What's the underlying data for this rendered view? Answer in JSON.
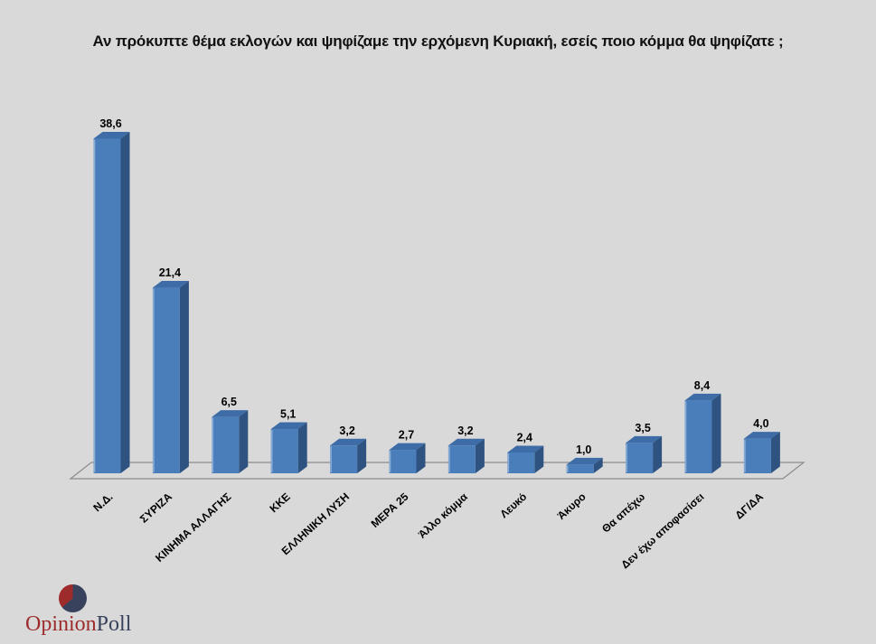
{
  "title": "Αν πρόκυπτε θέμα εκλογών και ψηφίζαμε την ερχόμενη Κυριακή, εσείς ποιο κόμμα θα ψηφίζατε ;",
  "background_color": "#d9d9d9",
  "chart_data": {
    "type": "bar",
    "style": "3d-column",
    "title": "Αν πρόκυπτε θέμα εκλογών και ψηφίζαμε την ερχόμενη Κυριακή, εσείς ποιο κόμμα θα ψηφίζατε ;",
    "categories": [
      "Ν.Δ.",
      "ΣΥΡΙΖΑ",
      "ΚΙΝΗΜΑ ΑΛΛΑΓΗΣ",
      "ΚΚΕ",
      "ΕΛΛΗΝΙΚΗ ΛΥΣΗ",
      "ΜΕΡΑ 25",
      "Άλλο κόμμα",
      "Λευκό",
      "Άκυρο",
      "Θα απέχω",
      "Δεν έχω αποφασίσει",
      "ΔΓ/ΔΑ"
    ],
    "values": [
      38.6,
      21.4,
      6.5,
      5.1,
      3.2,
      2.7,
      3.2,
      2.4,
      1.0,
      3.5,
      8.4,
      4.0
    ],
    "value_labels": [
      "38,6",
      "21,4",
      "6,5",
      "5,1",
      "3,2",
      "2,7",
      "3,2",
      "2,4",
      "1,0",
      "3,5",
      "8,4",
      "4,0"
    ],
    "xlabel": "",
    "ylabel": "",
    "ylim": [
      0,
      40
    ],
    "grid": false,
    "legend": false,
    "decimal_separator": ",",
    "colors": {
      "bar_front": "#4a7ebb",
      "bar_side": "#2e5380",
      "bar_top": "#3e6ca6",
      "bar_highlight": "#8aadd6",
      "floor_line": "#8c8c8c",
      "label_text": "#000000"
    }
  },
  "logo": {
    "text_primary": "Opinion",
    "text_secondary": "Poll",
    "primary_color": "#9e2b2b",
    "secondary_color": "#39425c",
    "pie_navy_deg": 230
  }
}
